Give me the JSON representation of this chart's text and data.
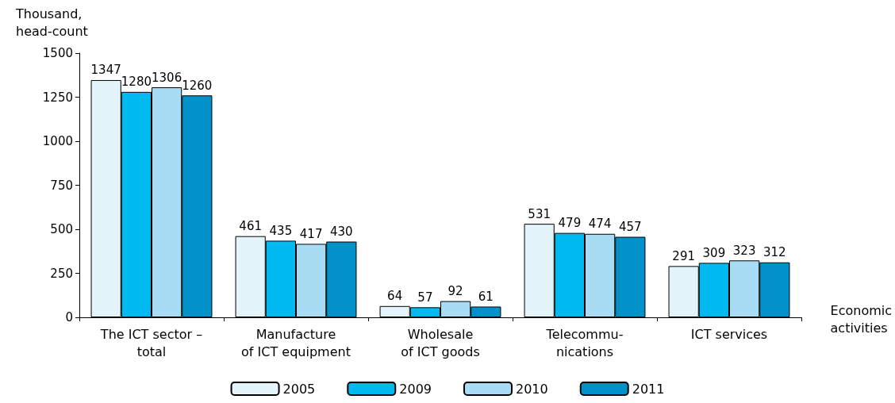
{
  "chart_data": {
    "type": "bar",
    "ylabel": "Thousand,\nhead-count",
    "xlabel": "Economic\nactivities",
    "categories": [
      "The ICT sector –\ntotal",
      "Manufacture\nof ICT equipment",
      "Wholesale\nof ICT goods",
      "Telecommu-\nnications",
      "ICT services"
    ],
    "series": [
      {
        "name": "2005",
        "color": "#e3f4fb",
        "values": [
          1347,
          461,
          64,
          531,
          291
        ]
      },
      {
        "name": "2009",
        "color": "#00b9ef",
        "values": [
          1280,
          435,
          57,
          479,
          309
        ]
      },
      {
        "name": "2010",
        "color": "#a8dcf5",
        "values": [
          1306,
          417,
          92,
          474,
          323
        ]
      },
      {
        "name": "2011",
        "color": "#0092c8",
        "values": [
          1260,
          430,
          61,
          457,
          312
        ]
      }
    ],
    "ylim": [
      0,
      1500
    ],
    "yticks": [
      0,
      250,
      500,
      750,
      1000,
      1250,
      1500
    ],
    "data_labels": true,
    "grid": false,
    "legend": "bottom"
  }
}
